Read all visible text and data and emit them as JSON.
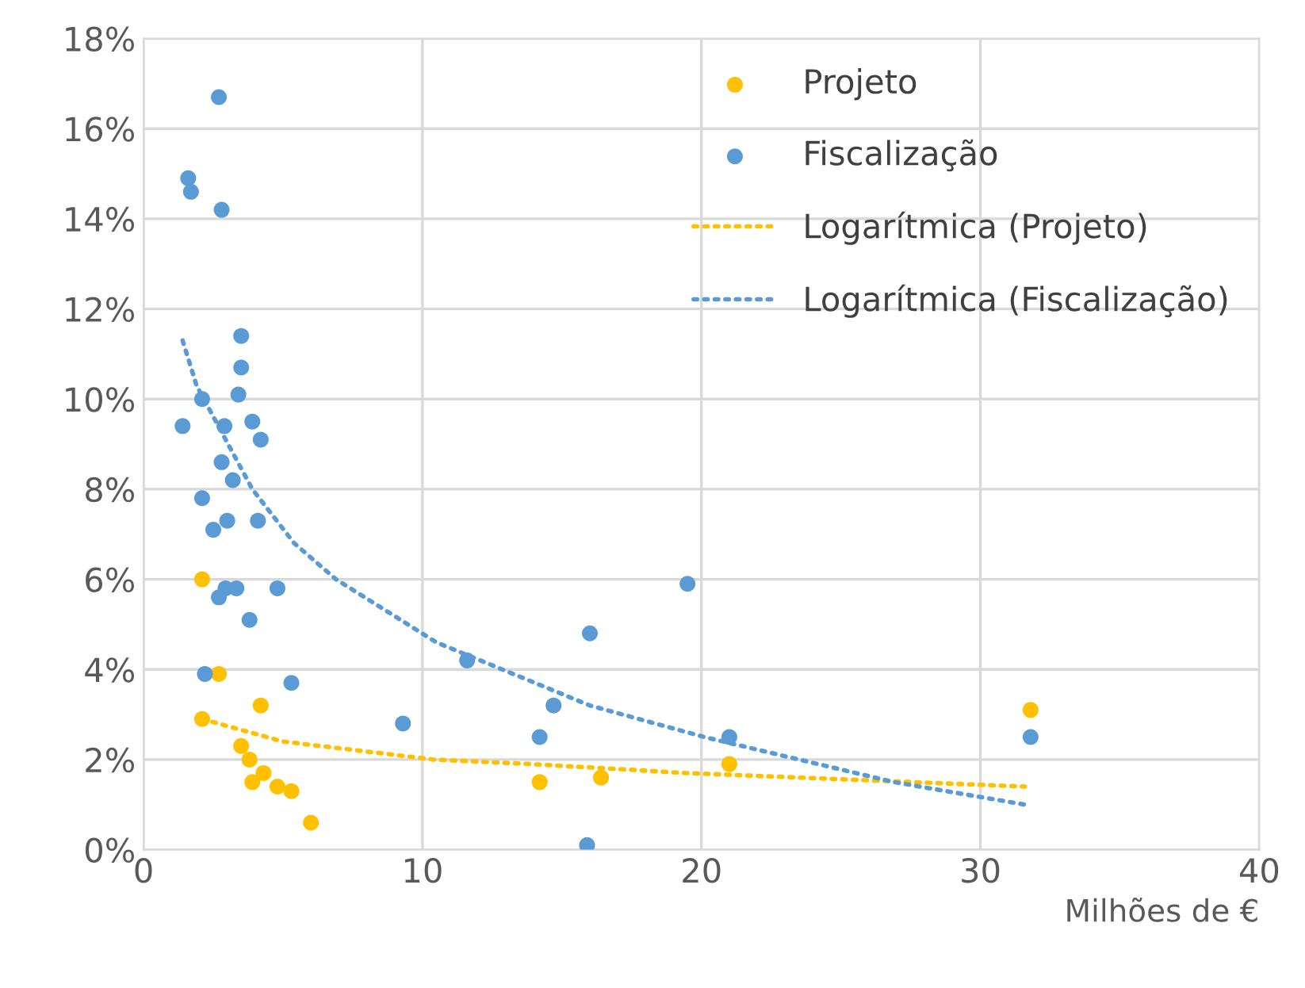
{
  "chart_data": {
    "type": "scatter",
    "xlabel": "Milhões de €",
    "xlim": [
      0,
      40
    ],
    "xticks": [
      0,
      10,
      20,
      30,
      40
    ],
    "ylim": [
      0,
      18
    ],
    "yticks": [
      {
        "value": 0,
        "label": "0%"
      },
      {
        "value": 2,
        "label": "2%"
      },
      {
        "value": 4,
        "label": "4%"
      },
      {
        "value": 6,
        "label": "6%"
      },
      {
        "value": 8,
        "label": "8%"
      },
      {
        "value": 10,
        "label": "10%"
      },
      {
        "value": 12,
        "label": "12%"
      },
      {
        "value": 14,
        "label": "14%"
      },
      {
        "value": 16,
        "label": "16%"
      },
      {
        "value": 18,
        "label": "18%"
      }
    ],
    "grid": true,
    "legend": "top right",
    "marker": "circle",
    "series": [
      {
        "name": "Projeto",
        "color": "#ffc000",
        "x": [
          2.1,
          2.7,
          4.2,
          2.1,
          3.5,
          3.8,
          4.3,
          3.9,
          4.8,
          5.3,
          6.0,
          31.8,
          21.0,
          14.2,
          16.4
        ],
        "values": [
          6.0,
          3.9,
          3.2,
          2.9,
          2.3,
          2.0,
          1.7,
          1.5,
          1.4,
          1.3,
          0.6,
          3.1,
          1.9,
          1.5,
          1.6
        ]
      },
      {
        "name": "Fiscalização",
        "color": "#5b9bd5",
        "x": [
          2.7,
          1.6,
          1.7,
          2.8,
          3.5,
          3.5,
          3.4,
          2.1,
          1.4,
          2.9,
          3.9,
          4.2,
          2.8,
          3.2,
          2.1,
          3.0,
          2.5,
          4.1,
          4.8,
          2.94,
          3.33,
          2.7,
          3.8,
          2.2,
          5.3,
          9.3,
          19.5,
          16.0,
          11.6,
          14.7,
          14.2,
          21.0,
          31.8,
          15.9
        ],
        "values": [
          16.7,
          14.9,
          14.6,
          14.2,
          11.4,
          10.7,
          10.1,
          10.0,
          9.4,
          9.4,
          9.5,
          9.1,
          8.6,
          8.2,
          7.8,
          7.3,
          7.1,
          7.3,
          5.8,
          5.8,
          5.8,
          5.6,
          5.1,
          3.9,
          3.7,
          2.8,
          5.9,
          4.8,
          4.2,
          3.2,
          2.5,
          2.5,
          2.5,
          0.1
        ]
      },
      {
        "name": "Logarítmica (Projeto)",
        "type": "line",
        "line_style": "dotted",
        "marker": "none",
        "color": "#ffc000",
        "x": [
          2.1,
          5.0,
          10.4,
          13.9,
          19.5,
          31.6
        ],
        "values": [
          2.9,
          2.4,
          2.0,
          1.9,
          1.7,
          1.4
        ]
      },
      {
        "name": "Logarítmica (Fiscalização)",
        "type": "line",
        "line_style": "dotted",
        "marker": "none",
        "color": "#5b9bd5",
        "x": [
          1.4,
          1.9,
          3.9,
          5.4,
          6.9,
          10.5,
          16.0,
          20.1,
          26.9,
          31.6
        ],
        "values": [
          11.3,
          10.3,
          8.0,
          6.8,
          6.0,
          4.6,
          3.2,
          2.5,
          1.5,
          1.0
        ]
      }
    ]
  }
}
